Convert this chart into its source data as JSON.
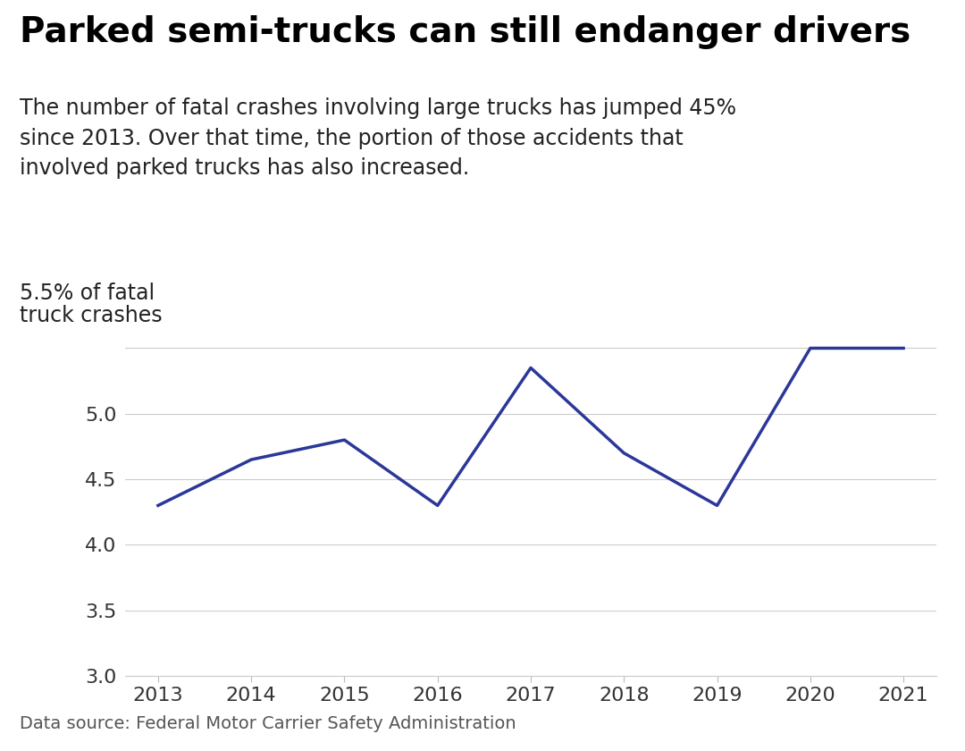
{
  "years": [
    2013,
    2014,
    2015,
    2016,
    2017,
    2018,
    2019,
    2020,
    2021
  ],
  "values": [
    4.3,
    4.65,
    4.8,
    4.3,
    5.35,
    4.7,
    4.3,
    5.5,
    5.5
  ],
  "title": "Parked semi-trucks can still endanger drivers",
  "subtitle": "The number of fatal crashes involving large trucks has jumped 45%\nsince 2013. Over that time, the portion of those accidents that\ninvolved parked trucks has also increased.",
  "ylabel_line1": "5.5% of fatal",
  "ylabel_line2": "truck crashes",
  "source": "Data source: Federal Motor Carrier Safety Administration",
  "line_color": "#2B3799",
  "ylim": [
    3.0,
    5.75
  ],
  "yticks": [
    3.0,
    3.5,
    4.0,
    4.5,
    5.0,
    5.5
  ],
  "background_color": "#FFFFFF",
  "title_fontsize": 28,
  "subtitle_fontsize": 17,
  "ylabel_fontsize": 17,
  "tick_fontsize": 16,
  "source_fontsize": 14
}
